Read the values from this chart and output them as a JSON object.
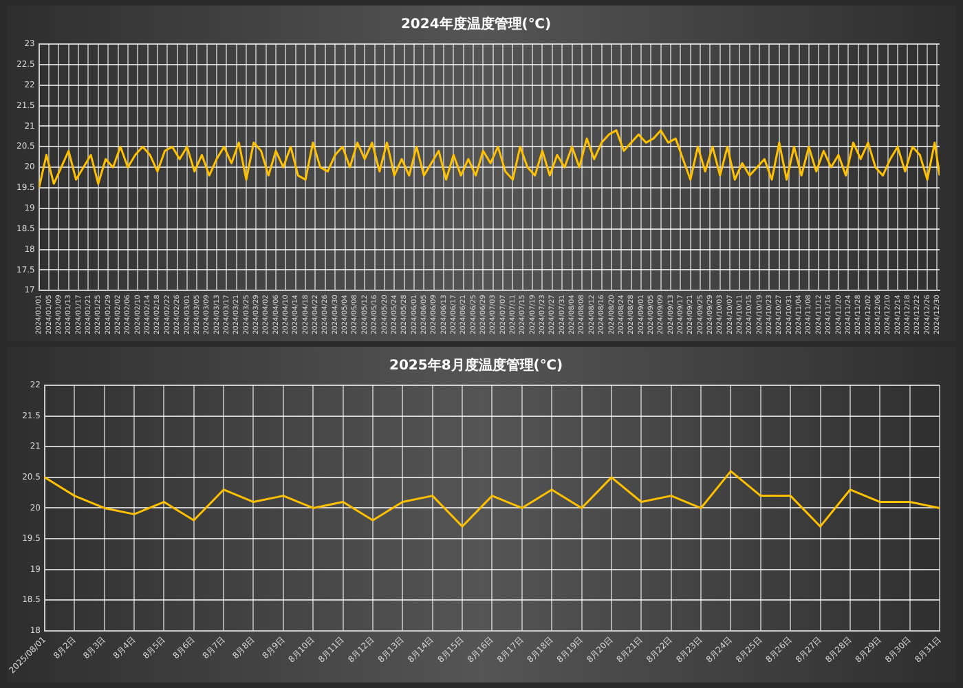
{
  "chart_data": [
    {
      "type": "line",
      "title": "2024年度温度管理(℃)",
      "grid": true,
      "legend": false,
      "marker": "none",
      "line_style": "solid",
      "xlim": [
        "2024-01-01",
        "2024-12-31"
      ],
      "xticks": [
        {
          "value": "2024-01-01",
          "label": "2024/01/01"
        },
        {
          "value": "2024-01-05",
          "label": "2024/01/05"
        },
        {
          "value": "2024-01-09",
          "label": "2024/01/09"
        },
        {
          "value": "2024-01-13",
          "label": "2024/01/13"
        },
        {
          "value": "2024-01-17",
          "label": "2024/01/17"
        },
        {
          "value": "2024-01-21",
          "label": "2024/01/21"
        },
        {
          "value": "2024-01-25",
          "label": "2024/01/25"
        },
        {
          "value": "2024-01-29",
          "label": "2024/01/29"
        },
        {
          "value": "2024-02-02",
          "label": "2024/02/02"
        },
        {
          "value": "2024-02-06",
          "label": "2024/02/06"
        },
        {
          "value": "2024-02-10",
          "label": "2024/02/10"
        },
        {
          "value": "2024-02-14",
          "label": "2024/02/14"
        },
        {
          "value": "2024-02-18",
          "label": "2024/02/18"
        },
        {
          "value": "2024-02-22",
          "label": "2024/02/22"
        },
        {
          "value": "2024-02-26",
          "label": "2024/02/26"
        },
        {
          "value": "2024-03-01",
          "label": "2024/03/01"
        },
        {
          "value": "2024-03-05",
          "label": "2024/03/05"
        },
        {
          "value": "2024-03-09",
          "label": "2024/03/09"
        },
        {
          "value": "2024-03-13",
          "label": "2024/03/13"
        },
        {
          "value": "2024-03-17",
          "label": "2024/03/17"
        },
        {
          "value": "2024-03-21",
          "label": "2024/03/21"
        },
        {
          "value": "2024-03-25",
          "label": "2024/03/25"
        },
        {
          "value": "2024-03-29",
          "label": "2024/03/29"
        },
        {
          "value": "2024-04-02",
          "label": "2024/04/02"
        },
        {
          "value": "2024-04-06",
          "label": "2024/04/06"
        },
        {
          "value": "2024-04-10",
          "label": "2024/04/10"
        },
        {
          "value": "2024-04-14",
          "label": "2024/04/14"
        },
        {
          "value": "2024-04-18",
          "label": "2024/04/18"
        },
        {
          "value": "2024-04-22",
          "label": "2024/04/22"
        },
        {
          "value": "2024-04-26",
          "label": "2024/04/26"
        },
        {
          "value": "2024-04-30",
          "label": "2024/04/30"
        },
        {
          "value": "2024-05-04",
          "label": "2024/05/04"
        },
        {
          "value": "2024-05-08",
          "label": "2024/05/08"
        },
        {
          "value": "2024-05-12",
          "label": "2024/05/12"
        },
        {
          "value": "2024-05-16",
          "label": "2024/05/16"
        },
        {
          "value": "2024-05-20",
          "label": "2024/05/20"
        },
        {
          "value": "2024-05-24",
          "label": "2024/05/24"
        },
        {
          "value": "2024-05-28",
          "label": "2024/05/28"
        },
        {
          "value": "2024-06-01",
          "label": "2024/06/01"
        },
        {
          "value": "2024-06-05",
          "label": "2024/06/05"
        },
        {
          "value": "2024-06-09",
          "label": "2024/06/09"
        },
        {
          "value": "2024-06-13",
          "label": "2024/06/13"
        },
        {
          "value": "2024-06-17",
          "label": "2024/06/17"
        },
        {
          "value": "2024-06-21",
          "label": "2024/06/21"
        },
        {
          "value": "2024-06-25",
          "label": "2024/06/25"
        },
        {
          "value": "2024-06-29",
          "label": "2024/06/29"
        },
        {
          "value": "2024-07-03",
          "label": "2024/07/03"
        },
        {
          "value": "2024-07-07",
          "label": "2024/07/07"
        },
        {
          "value": "2024-07-11",
          "label": "2024/07/11"
        },
        {
          "value": "2024-07-15",
          "label": "2024/07/15"
        },
        {
          "value": "2024-07-19",
          "label": "2024/07/19"
        },
        {
          "value": "2024-07-23",
          "label": "2024/07/23"
        },
        {
          "value": "2024-07-27",
          "label": "2024/07/27"
        },
        {
          "value": "2024-07-31",
          "label": "2024/07/31"
        },
        {
          "value": "2024-08-04",
          "label": "2024/08/04"
        },
        {
          "value": "2024-08-08",
          "label": "2024/08/08"
        },
        {
          "value": "2024-08-12",
          "label": "2024/08/12"
        },
        {
          "value": "2024-08-16",
          "label": "2024/08/16"
        },
        {
          "value": "2024-08-20",
          "label": "2024/08/20"
        },
        {
          "value": "2024-08-24",
          "label": "2024/08/24"
        },
        {
          "value": "2024-08-28",
          "label": "2024/08/28"
        },
        {
          "value": "2024-09-01",
          "label": "2024/09/01"
        },
        {
          "value": "2024-09-05",
          "label": "2024/09/05"
        },
        {
          "value": "2024-09-09",
          "label": "2024/09/09"
        },
        {
          "value": "2024-09-13",
          "label": "2024/09/13"
        },
        {
          "value": "2024-09-17",
          "label": "2024/09/17"
        },
        {
          "value": "2024-09-21",
          "label": "2024/09/21"
        },
        {
          "value": "2024-09-25",
          "label": "2024/09/25"
        },
        {
          "value": "2024-09-29",
          "label": "2024/09/29"
        },
        {
          "value": "2024-10-03",
          "label": "2024/10/03"
        },
        {
          "value": "2024-10-07",
          "label": "2024/10/07"
        },
        {
          "value": "2024-10-11",
          "label": "2024/10/11"
        },
        {
          "value": "2024-10-15",
          "label": "2024/10/15"
        },
        {
          "value": "2024-10-19",
          "label": "2024/10/19"
        },
        {
          "value": "2024-10-23",
          "label": "2024/10/23"
        },
        {
          "value": "2024-10-27",
          "label": "2024/10/27"
        },
        {
          "value": "2024-10-31",
          "label": "2024/10/31"
        },
        {
          "value": "2024-11-04",
          "label": "2024/11/04"
        },
        {
          "value": "2024-11-08",
          "label": "2024/11/08"
        },
        {
          "value": "2024-11-12",
          "label": "2024/11/12"
        },
        {
          "value": "2024-11-16",
          "label": "2024/11/16"
        },
        {
          "value": "2024-11-20",
          "label": "2024/11/20"
        },
        {
          "value": "2024-11-24",
          "label": "2024/11/24"
        },
        {
          "value": "2024-11-28",
          "label": "2024/11/28"
        },
        {
          "value": "2024-12-02",
          "label": "2024/12/02"
        },
        {
          "value": "2024-12-06",
          "label": "2024/12/06"
        },
        {
          "value": "2024-12-10",
          "label": "2024/12/10"
        },
        {
          "value": "2024-12-14",
          "label": "2024/12/14"
        },
        {
          "value": "2024-12-18",
          "label": "2024/12/18"
        },
        {
          "value": "2024-12-22",
          "label": "2024/12/22"
        },
        {
          "value": "2024-12-26",
          "label": "2024/12/26"
        },
        {
          "value": "2024-12-30",
          "label": "2024/12/30"
        }
      ],
      "ylim": [
        17,
        23
      ],
      "yticks": [
        17,
        17.5,
        18,
        18.5,
        19,
        19.5,
        20,
        20.5,
        21,
        21.5,
        22,
        22.5,
        23
      ],
      "x": [
        "2024-01-01",
        "2024-01-04",
        "2024-01-07",
        "2024-01-10",
        "2024-01-13",
        "2024-01-16",
        "2024-01-19",
        "2024-01-22",
        "2024-01-25",
        "2024-01-28",
        "2024-01-31",
        "2024-02-03",
        "2024-02-06",
        "2024-02-09",
        "2024-02-12",
        "2024-02-15",
        "2024-02-18",
        "2024-02-21",
        "2024-02-24",
        "2024-02-27",
        "2024-03-01",
        "2024-03-04",
        "2024-03-07",
        "2024-03-10",
        "2024-03-13",
        "2024-03-16",
        "2024-03-19",
        "2024-03-22",
        "2024-03-25",
        "2024-03-28",
        "2024-03-31",
        "2024-04-03",
        "2024-04-06",
        "2024-04-09",
        "2024-04-12",
        "2024-04-15",
        "2024-04-18",
        "2024-04-21",
        "2024-04-24",
        "2024-04-27",
        "2024-04-30",
        "2024-05-03",
        "2024-05-06",
        "2024-05-09",
        "2024-05-12",
        "2024-05-15",
        "2024-05-18",
        "2024-05-21",
        "2024-05-24",
        "2024-05-27",
        "2024-05-30",
        "2024-06-02",
        "2024-06-05",
        "2024-06-08",
        "2024-06-11",
        "2024-06-14",
        "2024-06-17",
        "2024-06-20",
        "2024-06-23",
        "2024-06-26",
        "2024-06-29",
        "2024-07-02",
        "2024-07-05",
        "2024-07-08",
        "2024-07-11",
        "2024-07-14",
        "2024-07-17",
        "2024-07-20",
        "2024-07-23",
        "2024-07-26",
        "2024-07-29",
        "2024-08-01",
        "2024-08-04",
        "2024-08-07",
        "2024-08-10",
        "2024-08-13",
        "2024-08-16",
        "2024-08-19",
        "2024-08-22",
        "2024-08-25",
        "2024-08-28",
        "2024-08-31",
        "2024-09-03",
        "2024-09-06",
        "2024-09-09",
        "2024-09-12",
        "2024-09-15",
        "2024-09-18",
        "2024-09-21",
        "2024-09-24",
        "2024-09-27",
        "2024-09-30",
        "2024-10-03",
        "2024-10-06",
        "2024-10-09",
        "2024-10-12",
        "2024-10-15",
        "2024-10-18",
        "2024-10-21",
        "2024-10-24",
        "2024-10-27",
        "2024-10-30",
        "2024-11-02",
        "2024-11-05",
        "2024-11-08",
        "2024-11-11",
        "2024-11-14",
        "2024-11-17",
        "2024-11-20",
        "2024-11-23",
        "2024-11-26",
        "2024-11-29",
        "2024-12-02",
        "2024-12-05",
        "2024-12-08",
        "2024-12-11",
        "2024-12-14",
        "2024-12-17",
        "2024-12-20",
        "2024-12-23",
        "2024-12-26",
        "2024-12-29",
        "2024-12-31"
      ],
      "series": [
        {
          "color": "#ffc000",
          "values": [
            19.5,
            20.3,
            19.6,
            20.0,
            20.4,
            19.7,
            20.0,
            20.3,
            19.6,
            20.2,
            20.0,
            20.5,
            20.0,
            20.3,
            20.5,
            20.3,
            19.9,
            20.4,
            20.5,
            20.2,
            20.5,
            19.9,
            20.3,
            19.8,
            20.2,
            20.5,
            20.1,
            20.6,
            19.7,
            20.6,
            20.4,
            19.8,
            20.4,
            20.0,
            20.5,
            19.8,
            19.7,
            20.6,
            20.0,
            19.9,
            20.3,
            20.5,
            20.0,
            20.6,
            20.2,
            20.6,
            19.9,
            20.6,
            19.8,
            20.2,
            19.8,
            20.5,
            19.8,
            20.1,
            20.4,
            19.7,
            20.3,
            19.8,
            20.2,
            19.8,
            20.4,
            20.1,
            20.5,
            19.9,
            19.7,
            20.5,
            20.0,
            19.8,
            20.4,
            19.8,
            20.3,
            20.0,
            20.5,
            20.0,
            20.7,
            20.2,
            20.6,
            20.8,
            20.9,
            20.4,
            20.6,
            20.8,
            20.6,
            20.7,
            20.9,
            20.6,
            20.7,
            20.2,
            19.7,
            20.5,
            19.9,
            20.5,
            19.8,
            20.5,
            19.7,
            20.1,
            19.8,
            20.0,
            20.2,
            19.7,
            20.6,
            19.7,
            20.5,
            19.8,
            20.5,
            19.9,
            20.4,
            20.0,
            20.3,
            19.8,
            20.6,
            20.2,
            20.6,
            20.0,
            19.8,
            20.2,
            20.5,
            19.9,
            20.5,
            20.3,
            19.7,
            20.6,
            19.8
          ]
        }
      ]
    },
    {
      "type": "line",
      "title": "2025年8月度温度管理(℃)",
      "grid": true,
      "legend": false,
      "marker": "none",
      "line_style": "solid",
      "categories": [
        "2025/08/01",
        "8月2日",
        "8月3日",
        "8月4日",
        "8月5日",
        "8月6日",
        "8月7日",
        "8月8日",
        "8月9日",
        "8月10日",
        "8月11日",
        "8月12日",
        "8月13日",
        "8月14日",
        "8月15日",
        "8月16日",
        "8月17日",
        "8月18日",
        "8月19日",
        "8月20日",
        "8月21日",
        "8月22日",
        "8月23日",
        "8月24日",
        "8月25日",
        "8月26日",
        "8月27日",
        "8月28日",
        "8月29日",
        "8月30日",
        "8月31日"
      ],
      "ylim": [
        18,
        22
      ],
      "yticks": [
        18,
        18.5,
        19,
        19.5,
        20,
        20.5,
        21,
        21.5,
        22
      ],
      "series": [
        {
          "color": "#ffc000",
          "values": [
            20.5,
            20.2,
            20.0,
            19.9,
            20.1,
            19.8,
            20.3,
            20.1,
            20.2,
            20.0,
            20.1,
            19.8,
            20.1,
            20.2,
            19.7,
            20.2,
            20.0,
            20.3,
            20.0,
            20.5,
            20.1,
            20.2,
            20.0,
            20.6,
            20.2,
            20.2,
            19.7,
            20.3,
            20.1,
            20.1,
            20.0
          ]
        }
      ]
    }
  ]
}
